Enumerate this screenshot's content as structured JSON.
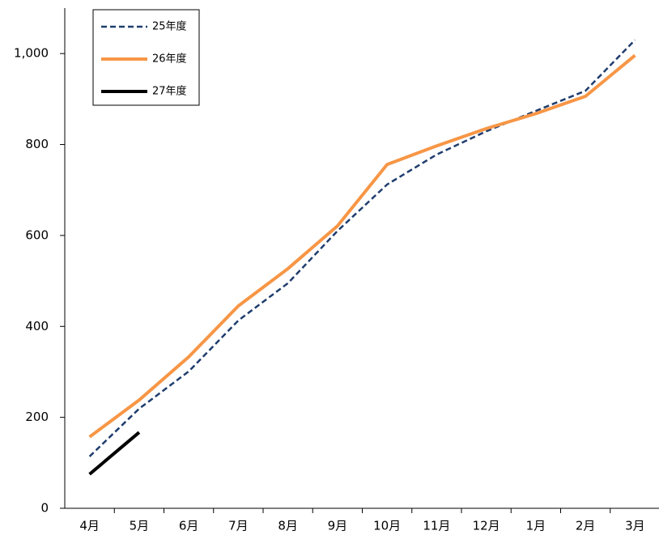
{
  "chart_data": {
    "type": "line",
    "categories": [
      "4月",
      "5月",
      "6月",
      "7月",
      "8月",
      "9月",
      "10月",
      "11月",
      "12月",
      "1月",
      "2月",
      "3月"
    ],
    "series": [
      {
        "name": "25年度",
        "color": "#1f3d6e",
        "style": "dashed",
        "values": [
          114,
          219,
          301,
          413,
          495,
          610,
          712,
          778,
          829,
          874,
          918,
          1030
        ]
      },
      {
        "name": "26年度",
        "color": "#f79646",
        "style": "solid",
        "values": [
          157,
          238,
          333,
          445,
          527,
          621,
          756,
          797,
          835,
          868,
          906,
          996
        ]
      },
      {
        "name": "27年度",
        "color": "#000000",
        "style": "solid",
        "values": [
          75,
          167,
          null,
          null,
          null,
          null,
          null,
          null,
          null,
          null,
          null,
          null
        ]
      }
    ],
    "ylim": [
      0,
      1100
    ],
    "yticks": [
      0,
      200,
      400,
      600,
      800,
      {
        "value": 1000,
        "label": "1,000"
      }
    ],
    "grid": false,
    "legend": "top-left"
  }
}
